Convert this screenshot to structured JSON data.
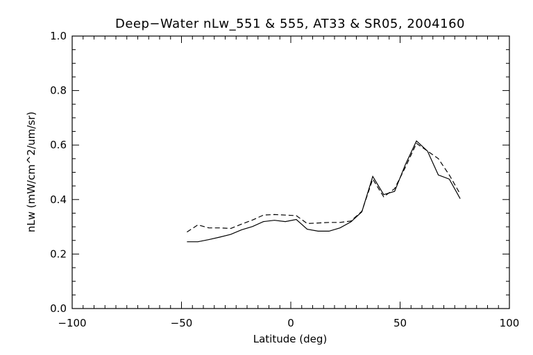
{
  "chart_data": {
    "type": "line",
    "title": "Deep−Water nLw_551 & 555, AT33 & SR05, 2004160",
    "xlabel": "Latitude (deg)",
    "ylabel": "nLw (mW/cm^2/um/sr)",
    "xlim": [
      -100,
      100
    ],
    "ylim": [
      0.0,
      1.0
    ],
    "x_ticks": [
      -100,
      -50,
      0,
      50,
      100
    ],
    "x_tick_labels": [
      "−100",
      "−50",
      "0",
      "50",
      "100"
    ],
    "y_ticks": [
      0.0,
      0.2,
      0.4,
      0.6,
      0.8,
      1.0
    ],
    "y_tick_labels": [
      "0.0",
      "0.2",
      "0.4",
      "0.6",
      "0.8",
      "1.0"
    ],
    "grid": false,
    "colors": {
      "axes": "#000000",
      "line": "#000000",
      "background": "#ffffff"
    },
    "series": [
      {
        "style": "solid",
        "x": [
          -47.5,
          -42.5,
          -37.5,
          -32.5,
          -27.5,
          -22.5,
          -17.5,
          -12.5,
          -7.5,
          -2.5,
          2.5,
          7.5,
          12.5,
          17.5,
          22.5,
          27.5,
          32.5,
          37.5,
          42.5,
          47.5,
          52.5,
          57.5,
          62.5,
          67.5,
          72.5,
          77.5
        ],
        "values": [
          0.245,
          0.245,
          0.253,
          0.262,
          0.272,
          0.289,
          0.301,
          0.319,
          0.324,
          0.319,
          0.327,
          0.291,
          0.284,
          0.284,
          0.296,
          0.318,
          0.355,
          0.485,
          0.418,
          0.43,
          0.53,
          0.615,
          0.578,
          0.49,
          0.475,
          0.403
        ]
      },
      {
        "style": "dashed",
        "x": [
          -47.5,
          -42.5,
          -37.5,
          -32.5,
          -27.5,
          -22.5,
          -17.5,
          -12.5,
          -7.5,
          -2.5,
          2.5,
          7.5,
          12.5,
          17.5,
          22.5,
          27.5,
          32.5,
          37.5,
          42.5,
          47.5,
          52.5,
          57.5,
          62.5,
          67.5,
          72.5,
          77.5
        ],
        "values": [
          0.281,
          0.307,
          0.296,
          0.296,
          0.294,
          0.31,
          0.325,
          0.343,
          0.345,
          0.343,
          0.341,
          0.312,
          0.314,
          0.316,
          0.316,
          0.321,
          0.357,
          0.475,
          0.41,
          0.44,
          0.52,
          0.606,
          0.578,
          0.55,
          0.49,
          0.42
        ]
      }
    ]
  }
}
